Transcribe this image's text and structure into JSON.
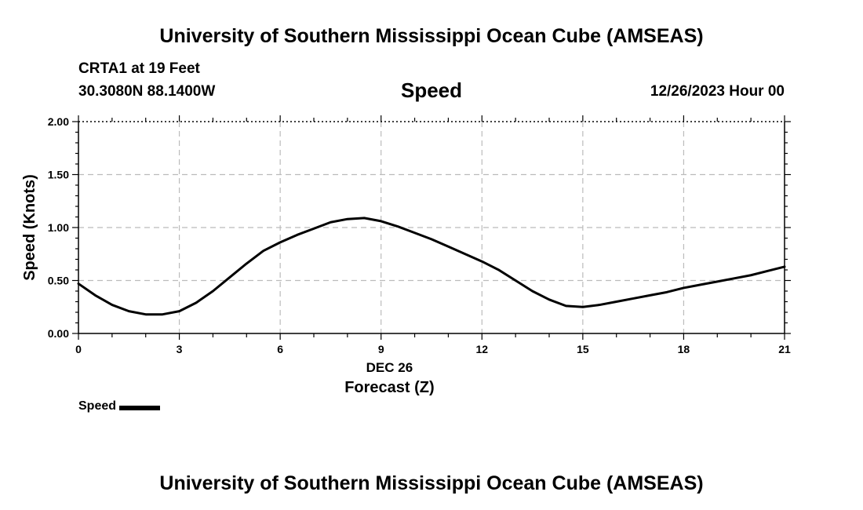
{
  "header": {
    "top_title": "University of Southern Mississippi Ocean Cube (AMSEAS)",
    "station": "CRTA1 at 19 Feet",
    "coords": "30.3080N  88.1400W",
    "datetime": "12/26/2023 Hour 00",
    "bottom_title": "University of Southern Mississippi Ocean Cube (AMSEAS)"
  },
  "chart_data": {
    "type": "line",
    "title": "Speed",
    "xlabel": "Forecast (Z)",
    "xlabel_date": "DEC 26",
    "ylabel": "Speed (Knots)",
    "xlim": [
      0,
      21
    ],
    "ylim": [
      0,
      2
    ],
    "x_ticks": [
      0,
      3,
      6,
      9,
      12,
      15,
      18,
      21
    ],
    "x_tick_labels": [
      "0",
      "3",
      "6",
      "9",
      "12",
      "15",
      "18",
      "21"
    ],
    "y_ticks": [
      0,
      0.5,
      1.0,
      1.5,
      2.0
    ],
    "y_tick_labels": [
      "0.00",
      "0.50",
      "1.00",
      "1.50",
      "2.00"
    ],
    "grid": true,
    "legend_position": "bottom-left",
    "series": [
      {
        "name": "Speed",
        "color": "#000000",
        "x": [
          0,
          0.5,
          1,
          1.5,
          2,
          2.5,
          3,
          3.5,
          4,
          4.5,
          5,
          5.5,
          6,
          6.5,
          7,
          7.5,
          8,
          8.5,
          9,
          9.5,
          10,
          10.5,
          11,
          11.5,
          12,
          12.5,
          13,
          13.5,
          14,
          14.5,
          15,
          15.5,
          16,
          16.5,
          17,
          17.5,
          18,
          18.5,
          19,
          19.5,
          20,
          20.5,
          21
        ],
        "values": [
          0.47,
          0.36,
          0.27,
          0.21,
          0.18,
          0.18,
          0.21,
          0.29,
          0.4,
          0.53,
          0.66,
          0.78,
          0.86,
          0.93,
          0.99,
          1.05,
          1.08,
          1.09,
          1.06,
          1.01,
          0.95,
          0.89,
          0.82,
          0.75,
          0.68,
          0.6,
          0.5,
          0.4,
          0.32,
          0.26,
          0.25,
          0.27,
          0.3,
          0.33,
          0.36,
          0.39,
          0.43,
          0.46,
          0.49,
          0.52,
          0.55,
          0.59,
          0.63
        ]
      }
    ]
  },
  "legend": {
    "label": "Speed"
  }
}
